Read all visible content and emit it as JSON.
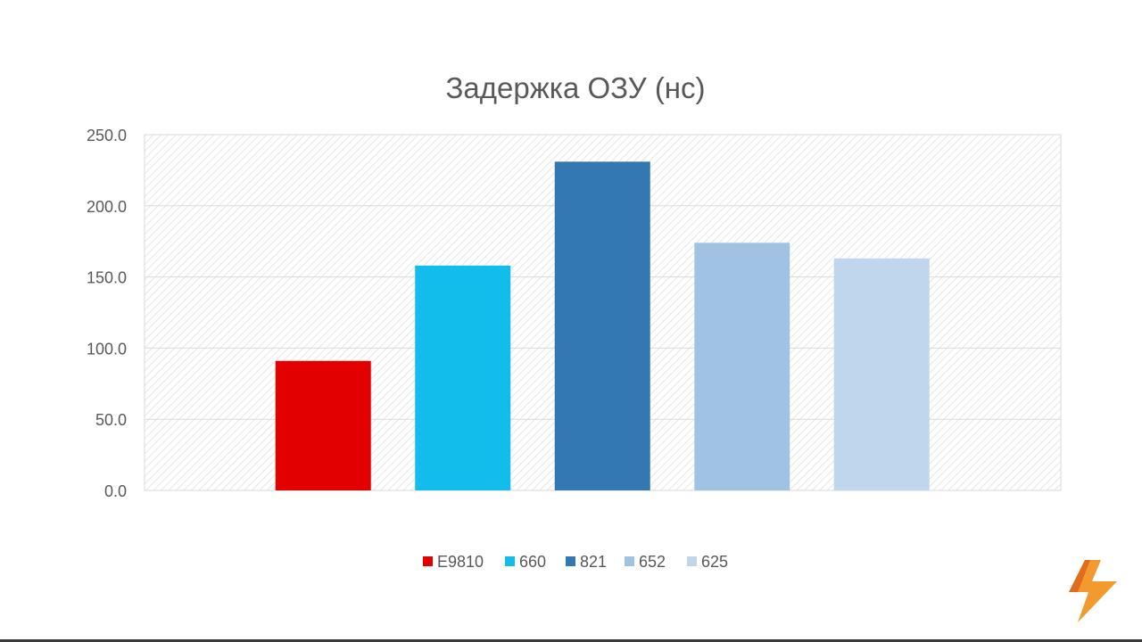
{
  "chart_data": {
    "type": "bar",
    "title": "Задержка ОЗУ (нс)",
    "xlabel": "",
    "ylabel": "",
    "ylim": [
      0,
      250
    ],
    "yticks": [
      0,
      50,
      100,
      150,
      200,
      250
    ],
    "ytick_labels": [
      "0.0",
      "50.0",
      "100.0",
      "150.0",
      "200.0",
      "250.0"
    ],
    "grid": true,
    "legend_position": "bottom",
    "series": [
      {
        "name": "E9810",
        "value": 91,
        "color": "#e30000"
      },
      {
        "name": "660",
        "value": 158,
        "color": "#12bdeb"
      },
      {
        "name": "821",
        "value": 231,
        "color": "#3478b2"
      },
      {
        "name": "652",
        "value": 174,
        "color": "#a0c3e4"
      },
      {
        "name": "625",
        "value": 163,
        "color": "#c0d6ec"
      }
    ]
  },
  "logo": {
    "icon": "lightning-bolt-icon",
    "color": "#f39a2e"
  }
}
